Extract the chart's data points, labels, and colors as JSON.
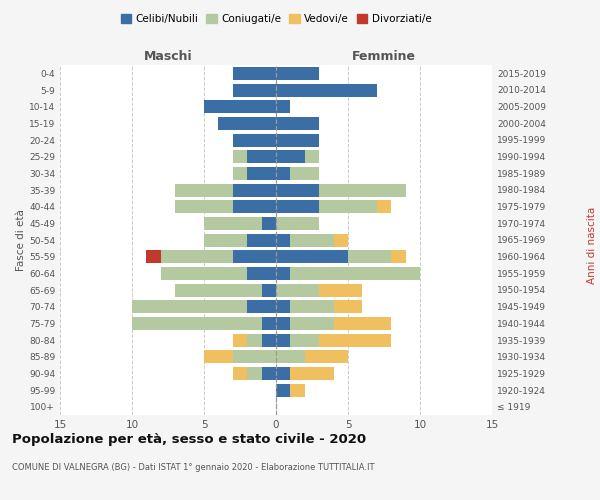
{
  "age_groups": [
    "100+",
    "95-99",
    "90-94",
    "85-89",
    "80-84",
    "75-79",
    "70-74",
    "65-69",
    "60-64",
    "55-59",
    "50-54",
    "45-49",
    "40-44",
    "35-39",
    "30-34",
    "25-29",
    "20-24",
    "15-19",
    "10-14",
    "5-9",
    "0-4"
  ],
  "birth_years": [
    "≤ 1919",
    "1920-1924",
    "1925-1929",
    "1930-1934",
    "1935-1939",
    "1940-1944",
    "1945-1949",
    "1950-1954",
    "1955-1959",
    "1960-1964",
    "1965-1969",
    "1970-1974",
    "1975-1979",
    "1980-1984",
    "1985-1989",
    "1990-1994",
    "1995-1999",
    "2000-2004",
    "2005-2009",
    "2010-2014",
    "2015-2019"
  ],
  "males": {
    "celibi": [
      0,
      0,
      1,
      0,
      1,
      1,
      2,
      1,
      2,
      3,
      2,
      1,
      3,
      3,
      2,
      2,
      3,
      4,
      5,
      3,
      3
    ],
    "coniugati": [
      0,
      0,
      1,
      3,
      1,
      9,
      8,
      6,
      6,
      5,
      3,
      4,
      4,
      4,
      1,
      1,
      0,
      0,
      0,
      0,
      0
    ],
    "vedovi": [
      0,
      0,
      1,
      2,
      1,
      0,
      0,
      0,
      0,
      0,
      0,
      0,
      0,
      0,
      0,
      0,
      0,
      0,
      0,
      0,
      0
    ],
    "divorziati": [
      0,
      0,
      0,
      0,
      0,
      0,
      0,
      0,
      0,
      1,
      0,
      0,
      0,
      0,
      0,
      0,
      0,
      0,
      0,
      0,
      0
    ]
  },
  "females": {
    "nubili": [
      0,
      1,
      1,
      0,
      1,
      1,
      1,
      0,
      1,
      5,
      1,
      0,
      3,
      3,
      1,
      2,
      3,
      3,
      1,
      7,
      3
    ],
    "coniugate": [
      0,
      0,
      0,
      2,
      2,
      3,
      3,
      3,
      9,
      3,
      3,
      3,
      4,
      6,
      2,
      1,
      0,
      0,
      0,
      0,
      0
    ],
    "vedove": [
      0,
      1,
      3,
      3,
      5,
      4,
      2,
      3,
      0,
      1,
      1,
      0,
      1,
      0,
      0,
      0,
      0,
      0,
      0,
      0,
      0
    ],
    "divorziate": [
      0,
      0,
      0,
      0,
      0,
      0,
      0,
      0,
      0,
      0,
      0,
      0,
      0,
      0,
      0,
      0,
      0,
      0,
      0,
      0,
      0
    ]
  },
  "colors": {
    "celibi_nubili": "#3a6ea5",
    "coniugati": "#b5c9a0",
    "vedovi": "#f0c060",
    "divorziati": "#c0392b"
  },
  "xlim": 15,
  "title": "Popolazione per età, sesso e stato civile - 2020",
  "subtitle": "COMUNE DI VALNEGRA (BG) - Dati ISTAT 1° gennaio 2020 - Elaborazione TUTTITALIA.IT",
  "ylabel_left": "Fasce di età",
  "ylabel_right": "Anni di nascita",
  "xlabel_maschi": "Maschi",
  "xlabel_femmine": "Femmine",
  "legend_labels": [
    "Celibi/Nubili",
    "Coniugati/e",
    "Vedovi/e",
    "Divorziati/e"
  ],
  "bg_color": "#f5f5f5",
  "plot_bg_color": "#ffffff",
  "grid_color": "#cccccc"
}
